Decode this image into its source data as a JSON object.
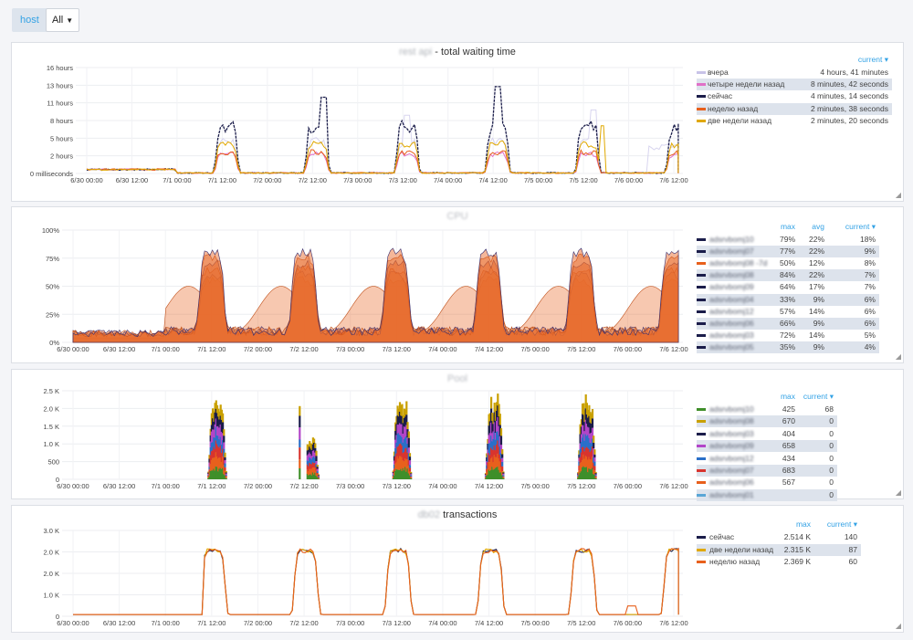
{
  "toolbar": {
    "variable_label": "host",
    "variable_value": "All"
  },
  "panels": [
    {
      "title": "rest api - total waiting time",
      "title_blur": true,
      "y_ticks": [
        "16 hours",
        "13 hours",
        "11 hours",
        "8 hours",
        "5 hours",
        "2 hours",
        "0 milliseconds"
      ],
      "x_ticks": [
        "6/30 00:00",
        "6/30 12:00",
        "7/1 00:00",
        "7/1 12:00",
        "7/2 00:00",
        "7/2 12:00",
        "7/3 00:00",
        "7/3 12:00",
        "7/4 00:00",
        "7/4 12:00",
        "7/5 00:00",
        "7/5 12:00",
        "7/6 00:00",
        "7/6 12:00"
      ],
      "legend_headers": [
        "current ▾"
      ],
      "legend": [
        {
          "name": "вчера",
          "color": "#c8c3e8",
          "values": [
            "4 hours, 41 minutes"
          ]
        },
        {
          "name": "четыре недели назад",
          "color": "#e070c8",
          "values": [
            "8 minutes, 42 seconds"
          ]
        },
        {
          "name": "сейчас",
          "color": "#1b1d4a",
          "values": [
            "4 minutes, 14 seconds"
          ]
        },
        {
          "name": "неделю назад",
          "color": "#e8601c",
          "values": [
            "2 minutes, 38 seconds"
          ]
        },
        {
          "name": "две недели назад",
          "color": "#e0a800",
          "values": [
            "2 minutes, 20 seconds"
          ]
        }
      ]
    },
    {
      "title": "CPU",
      "y_ticks": [
        "100%",
        "75%",
        "50%",
        "25%",
        "0%"
      ],
      "x_ticks": [
        "6/30 00:00",
        "6/30 12:00",
        "7/1 00:00",
        "7/1 12:00",
        "7/2 00:00",
        "7/2 12:00",
        "7/3 00:00",
        "7/3 12:00",
        "7/4 00:00",
        "7/4 12:00",
        "7/5 00:00",
        "7/5 12:00",
        "7/6 00:00",
        "7/6 12:00"
      ],
      "legend_headers": [
        "max",
        "avg",
        "current ▾"
      ],
      "legend": [
        {
          "name": "adsrvbomj10",
          "color": "#1b1d4a",
          "values": [
            "79%",
            "22%",
            "18%"
          ]
        },
        {
          "name": "adsrvbomj07",
          "color": "#1b1d4a",
          "values": [
            "77%",
            "22%",
            "9%"
          ]
        },
        {
          "name": "adsrvbomj08 -7d",
          "color": "#e8601c",
          "values": [
            "50%",
            "12%",
            "8%"
          ]
        },
        {
          "name": "adsrvbomj08",
          "color": "#1b1d4a",
          "values": [
            "84%",
            "22%",
            "7%"
          ]
        },
        {
          "name": "adsrvbomj09",
          "color": "#1b1d4a",
          "values": [
            "64%",
            "17%",
            "7%"
          ]
        },
        {
          "name": "adsrvbomj04",
          "color": "#1b1d4a",
          "values": [
            "33%",
            "9%",
            "6%"
          ]
        },
        {
          "name": "adsrvbomj12",
          "color": "#1b1d4a",
          "values": [
            "57%",
            "14%",
            "6%"
          ]
        },
        {
          "name": "adsrvbomj06",
          "color": "#1b1d4a",
          "values": [
            "66%",
            "9%",
            "6%"
          ]
        },
        {
          "name": "adsrvbomj03",
          "color": "#1b1d4a",
          "values": [
            "72%",
            "14%",
            "5%"
          ]
        },
        {
          "name": "adsrvbomj05",
          "color": "#1b1d4a",
          "values": [
            "35%",
            "9%",
            "4%"
          ]
        }
      ]
    },
    {
      "title": "Pool",
      "y_ticks": [
        "2.5 K",
        "2.0 K",
        "1.5 K",
        "1.0 K",
        "500",
        "0"
      ],
      "x_ticks": [
        "6/30 00:00",
        "6/30 12:00",
        "7/1 00:00",
        "7/1 12:00",
        "7/2 00:00",
        "7/2 12:00",
        "7/3 00:00",
        "7/3 12:00",
        "7/4 00:00",
        "7/4 12:00",
        "7/5 00:00",
        "7/5 12:00",
        "7/6 00:00",
        "7/6 12:00"
      ],
      "legend_headers": [
        "max",
        "current ▾"
      ],
      "legend": [
        {
          "name": "adsrvbomj10",
          "color": "#3f8f2a",
          "values": [
            "425",
            "68"
          ]
        },
        {
          "name": "adsrvbomj08",
          "color": "#c9a000",
          "values": [
            "670",
            "0"
          ]
        },
        {
          "name": "adsrvbomj03",
          "color": "#1b1d4a",
          "values": [
            "404",
            "0"
          ]
        },
        {
          "name": "adsrvbomj09",
          "color": "#b245c8",
          "values": [
            "658",
            "0"
          ]
        },
        {
          "name": "adsrvbomj12",
          "color": "#2a6fc9",
          "values": [
            "434",
            "0"
          ]
        },
        {
          "name": "adsrvbomj07",
          "color": "#d8342e",
          "values": [
            "683",
            "0"
          ]
        },
        {
          "name": "adsrvbomj06",
          "color": "#e8601c",
          "values": [
            "567",
            "0"
          ]
        },
        {
          "name": "adsrvbomj01",
          "color": "#5aa6d6",
          "values": [
            "",
            "0"
          ]
        }
      ]
    },
    {
      "title": "db02 transactions",
      "title_blur": true,
      "y_ticks": [
        "3.0 K",
        "2.0 K",
        "2.0 K",
        "1.0 K",
        "0"
      ],
      "x_ticks": [
        "6/30 00:00",
        "6/30 12:00",
        "7/1 00:00",
        "7/1 12:00",
        "7/2 00:00",
        "7/2 12:00",
        "7/3 00:00",
        "7/3 12:00",
        "7/4 00:00",
        "7/4 12:00",
        "7/5 00:00",
        "7/5 12:00",
        "7/6 00:00",
        "7/6 12:00"
      ],
      "legend_headers": [
        "max",
        "current ▾"
      ],
      "legend": [
        {
          "name": "сейчас",
          "color": "#1b1d4a",
          "values": [
            "2.514 K",
            "140"
          ]
        },
        {
          "name": "две недели назад",
          "color": "#e0a800",
          "values": [
            "2.315 K",
            "87"
          ]
        },
        {
          "name": "неделю назад",
          "color": "#e8601c",
          "values": [
            "2.369 K",
            "60"
          ]
        }
      ]
    }
  ]
}
